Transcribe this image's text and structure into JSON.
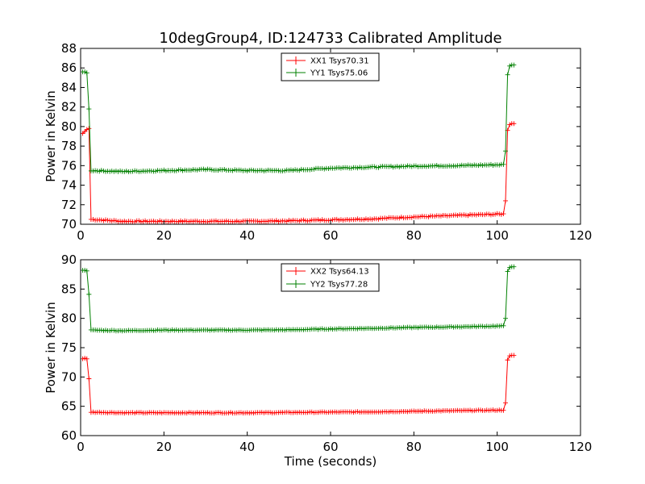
{
  "chart_data": [
    {
      "type": "line",
      "title": "10degGroup4, ID:124733 Calibrated Amplitude",
      "xlabel": "",
      "ylabel": "Power in Kelvin",
      "xlim": [
        0,
        120
      ],
      "ylim": [
        70,
        88
      ],
      "xticks": [
        "0",
        "20",
        "40",
        "60",
        "80",
        "100",
        "120"
      ],
      "yticks": [
        "70",
        "72",
        "74",
        "76",
        "78",
        "80",
        "82",
        "84",
        "86",
        "88"
      ],
      "legend_position": "top-center",
      "series": [
        {
          "name": "XX1 Tsys70.31",
          "color": "#ff0000",
          "start": [
            0.5,
            79.3,
            1.0,
            79.5,
            1.5,
            79.7,
            2.0,
            79.8
          ],
          "drop_at": 2.5,
          "plateau": [
            [
              2.5,
              70.5
            ],
            [
              10,
              70.3
            ],
            [
              20,
              70.3
            ],
            [
              30,
              70.3
            ],
            [
              40,
              70.3
            ],
            [
              50,
              70.35
            ],
            [
              60,
              70.45
            ],
            [
              70,
              70.55
            ],
            [
              80,
              70.75
            ],
            [
              90,
              70.9
            ],
            [
              101.5,
              71.05
            ]
          ],
          "end": [
            102.0,
            72.4,
            102.5,
            79.6,
            103.0,
            80.2,
            103.5,
            80.3,
            104.0,
            80.3
          ]
        },
        {
          "name": "YY1 Tsys75.06",
          "color": "#008000",
          "start": [
            0.5,
            85.6,
            1.0,
            85.6,
            1.5,
            85.5,
            2.0,
            81.8
          ],
          "drop_at": 2.5,
          "plateau": [
            [
              2.5,
              75.5
            ],
            [
              10,
              75.4
            ],
            [
              20,
              75.5
            ],
            [
              30,
              75.6
            ],
            [
              40,
              75.5
            ],
            [
              50,
              75.5
            ],
            [
              60,
              75.75
            ],
            [
              70,
              75.85
            ],
            [
              80,
              75.95
            ],
            [
              90,
              76.0
            ],
            [
              101.5,
              76.1
            ]
          ],
          "end": [
            102.0,
            77.5,
            102.5,
            85.3,
            103.0,
            86.2,
            103.5,
            86.3,
            104.0,
            86.3
          ]
        }
      ]
    },
    {
      "type": "line",
      "title": "",
      "xlabel": "Time (seconds)",
      "ylabel": "Power in Kelvin",
      "xlim": [
        0,
        120
      ],
      "ylim": [
        60,
        90
      ],
      "xticks": [
        "0",
        "20",
        "40",
        "60",
        "80",
        "100",
        "120"
      ],
      "yticks": [
        "60",
        "65",
        "70",
        "75",
        "80",
        "85",
        "90"
      ],
      "legend_position": "top-center",
      "series": [
        {
          "name": "XX2 Tsys64.13",
          "color": "#ff0000",
          "start": [
            0.5,
            73.1,
            1.0,
            73.2,
            1.5,
            73.1,
            2.0,
            69.7
          ],
          "drop_at": 2.5,
          "plateau": [
            [
              2.5,
              64.0
            ],
            [
              10,
              63.9
            ],
            [
              20,
              63.9
            ],
            [
              30,
              63.9
            ],
            [
              40,
              63.9
            ],
            [
              50,
              63.95
            ],
            [
              60,
              64.0
            ],
            [
              70,
              64.05
            ],
            [
              80,
              64.15
            ],
            [
              90,
              64.25
            ],
            [
              101.5,
              64.35
            ]
          ],
          "end": [
            102.0,
            65.6,
            102.5,
            72.9,
            103.0,
            73.6,
            103.5,
            73.7,
            104.0,
            73.7
          ]
        },
        {
          "name": "YY2 Tsys77.28",
          "color": "#008000",
          "start": [
            0.5,
            88.2,
            1.0,
            88.2,
            1.5,
            88.1,
            2.0,
            84.1
          ],
          "drop_at": 2.5,
          "plateau": [
            [
              2.5,
              78.0
            ],
            [
              10,
              77.9
            ],
            [
              20,
              78.0
            ],
            [
              30,
              78.0
            ],
            [
              40,
              78.0
            ],
            [
              50,
              78.05
            ],
            [
              60,
              78.2
            ],
            [
              70,
              78.3
            ],
            [
              80,
              78.45
            ],
            [
              90,
              78.55
            ],
            [
              101.5,
              78.7
            ]
          ],
          "end": [
            102.0,
            80.0,
            102.5,
            88.0,
            103.0,
            88.7,
            103.5,
            88.8,
            104.0,
            88.8
          ]
        }
      ]
    }
  ]
}
